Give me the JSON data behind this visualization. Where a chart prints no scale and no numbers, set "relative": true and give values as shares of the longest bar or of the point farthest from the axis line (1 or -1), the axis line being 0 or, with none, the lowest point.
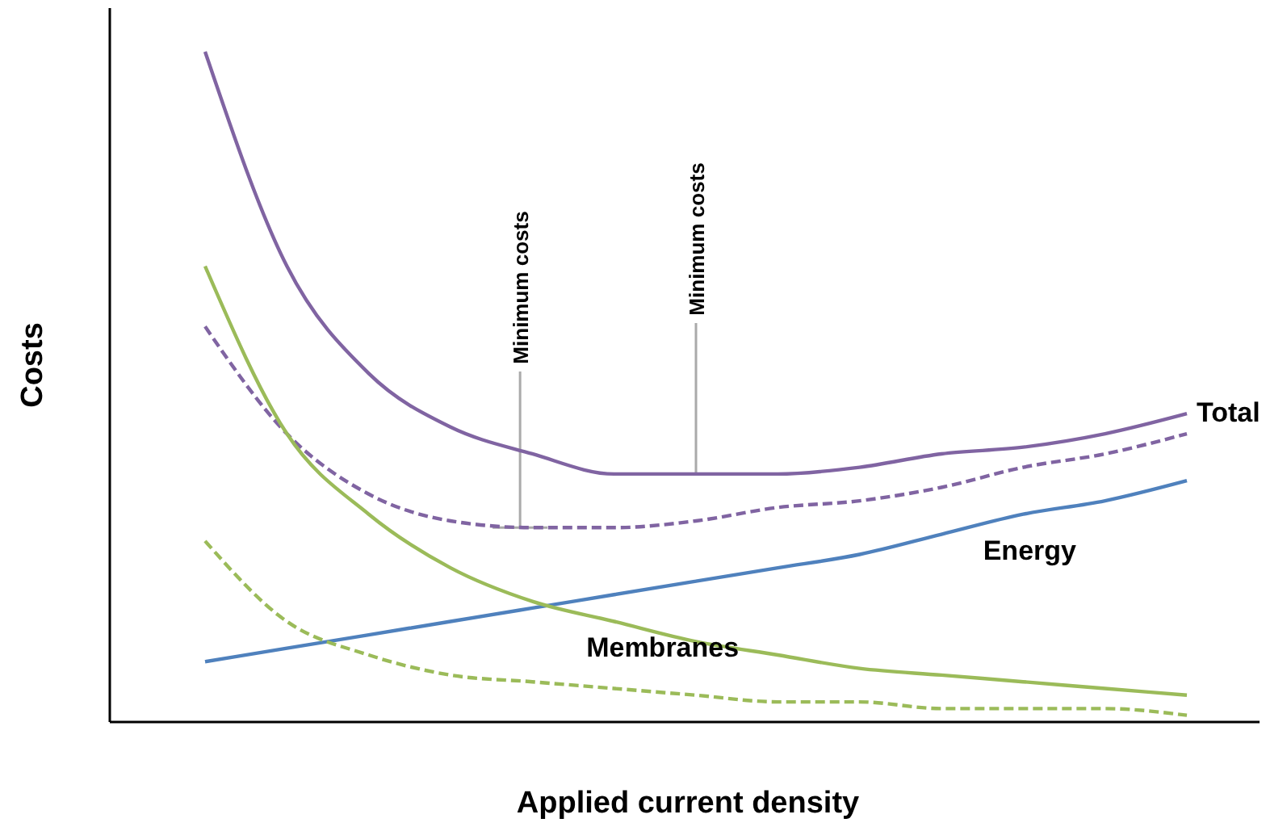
{
  "chart_data": {
    "type": "line",
    "relative": true,
    "xlabel": "Applied current density",
    "ylabel": "Costs",
    "marker": "none",
    "categories": [
      null,
      null,
      null,
      null,
      null,
      null,
      null,
      null,
      null,
      null,
      null,
      null,
      null
    ],
    "series": [
      {
        "name": "Total",
        "color": "#8064a2",
        "line_style": "solid",
        "values": [
          1.0,
          0.68,
          0.52,
          0.44,
          0.4,
          0.37,
          0.37,
          0.37,
          0.38,
          0.4,
          0.41,
          0.43,
          0.46
        ]
      },
      {
        "color": "#8064a2",
        "line_style": "dashed",
        "values": [
          0.59,
          0.43,
          0.34,
          0.3,
          0.29,
          0.29,
          0.3,
          0.32,
          0.33,
          0.35,
          0.38,
          0.4,
          0.43
        ]
      },
      {
        "name": "Energy",
        "color": "#4f81bd",
        "line_style": "solid",
        "values": [
          0.09,
          0.11,
          0.13,
          0.15,
          0.17,
          0.19,
          0.21,
          0.23,
          0.25,
          0.28,
          0.31,
          0.33,
          0.36
        ]
      },
      {
        "name": "Membranes",
        "color": "#9bbb59",
        "line_style": "solid",
        "values": [
          0.68,
          0.43,
          0.31,
          0.23,
          0.18,
          0.15,
          0.12,
          0.1,
          0.08,
          0.07,
          0.06,
          0.05,
          0.04
        ]
      },
      {
        "color": "#9bbb59",
        "line_style": "dashed",
        "values": [
          0.27,
          0.15,
          0.1,
          0.07,
          0.06,
          0.05,
          0.04,
          0.03,
          0.03,
          0.02,
          0.02,
          0.02,
          0.01
        ]
      }
    ],
    "annotations": [
      {
        "text": "Minimum costs",
        "y": 0.29
      },
      {
        "text": "Minimum costs",
        "y": 0.37
      }
    ]
  }
}
